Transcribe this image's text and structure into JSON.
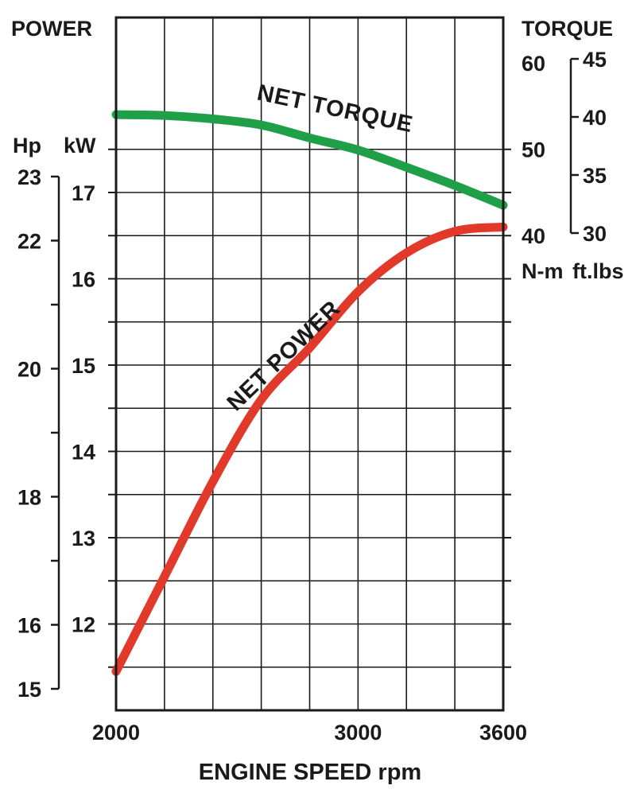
{
  "chart_data": {
    "type": "line",
    "titles": {
      "power": "POWER",
      "torque": "TORQUE"
    },
    "xlabel": "ENGINE SPEED rpm",
    "x_ticks": [
      "2000",
      "3000",
      "3600"
    ],
    "xlim": [
      2000,
      3600
    ],
    "grid": true,
    "axes": {
      "kw": {
        "unit": "kW",
        "range": [
          11.3,
          18.3
        ],
        "ticks": [
          "12",
          "13",
          "14",
          "15",
          "16",
          "17"
        ]
      },
      "hp": {
        "unit": "Hp",
        "range": [
          15,
          23
        ],
        "ticks": [
          "15",
          "16",
          "18",
          "20",
          "22",
          "23"
        ]
      },
      "nm": {
        "unit": "N-m",
        "range": [
          40,
          60
        ],
        "ticks": [
          "40",
          "50",
          "60"
        ]
      },
      "ftlbs": {
        "unit": "ft.lbs",
        "range": [
          30,
          45
        ],
        "ticks": [
          "30",
          "35",
          "40",
          "45"
        ]
      }
    },
    "series": [
      {
        "name": "NET TORQUE",
        "axis": "N-m",
        "color": "#1fa048",
        "x": [
          2000,
          2200,
          2400,
          2600,
          2800,
          3000,
          3200,
          3400,
          3600
        ],
        "values": [
          54.0,
          53.9,
          53.5,
          52.8,
          51.3,
          49.9,
          47.9,
          45.8,
          43.5
        ]
      },
      {
        "name": "NET POWER",
        "axis": "kW",
        "color": "#e23a2a",
        "x": [
          2000,
          2200,
          2400,
          2600,
          2800,
          3000,
          3200,
          3400,
          3600
        ],
        "values": [
          11.45,
          12.55,
          13.65,
          14.6,
          15.2,
          15.85,
          16.3,
          16.55,
          16.6
        ]
      }
    ]
  }
}
